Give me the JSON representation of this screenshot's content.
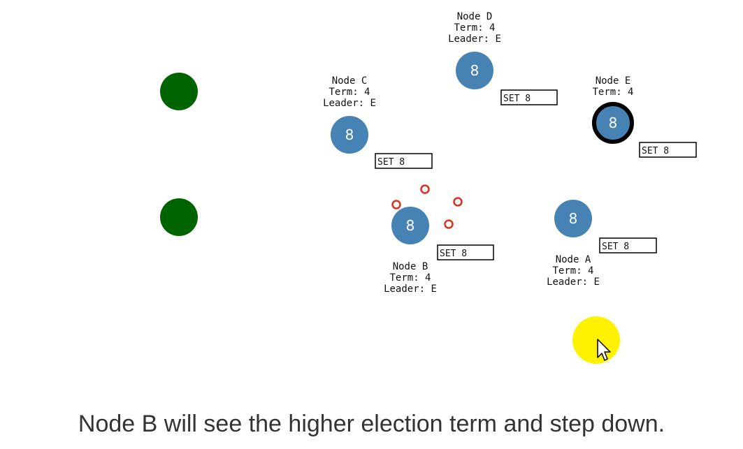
{
  "colors": {
    "client": "#006400",
    "node": "#4682b4",
    "leader_border": "#000000",
    "vote_message": "#e0301e",
    "cursor_highlight": "#fff200"
  },
  "nodes": [
    {
      "id": "D",
      "name": "Node D",
      "term": "Term: 4",
      "leader": "Leader: E",
      "value": "8",
      "log": "SET 8",
      "is_leader": false
    },
    {
      "id": "C",
      "name": "Node C",
      "term": "Term: 4",
      "leader": "Leader: E",
      "value": "8",
      "log": "SET 8",
      "is_leader": false
    },
    {
      "id": "E",
      "name": "Node E",
      "term": "Term: 4",
      "value": "8",
      "log": "SET 8",
      "is_leader": true
    },
    {
      "id": "B",
      "name": "Node B",
      "term": "Term: 4",
      "leader": "Leader: E",
      "value": "8",
      "log": "SET 8",
      "is_leader": false
    },
    {
      "id": "A",
      "name": "Node A",
      "term": "Term: 4",
      "leader": "Leader: E",
      "value": "8",
      "log": "SET 8",
      "is_leader": false
    }
  ],
  "caption": "Node B will see the higher election term and step down."
}
